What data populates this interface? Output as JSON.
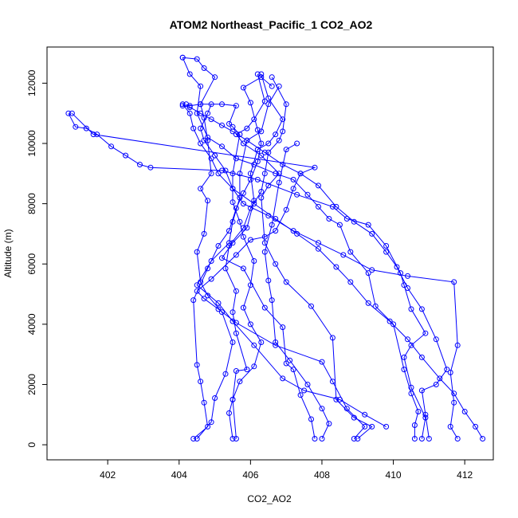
{
  "chart_data": {
    "type": "line",
    "title": "ATOM2 Northeast_Pacific_1 CO2_AO2",
    "xlabel": "CO2_AO2",
    "ylabel": "Altitude (m)",
    "xlim": [
      400.3,
      412.8
    ],
    "ylim": [
      -500,
      13200
    ],
    "x_ticks": [
      402,
      404,
      406,
      408,
      410,
      412
    ],
    "y_ticks": [
      0,
      2000,
      4000,
      6000,
      8000,
      10000,
      12000
    ],
    "x_tick_labels": [
      "402",
      "404",
      "406",
      "408",
      "410",
      "412"
    ],
    "y_tick_labels": [
      "0",
      "2000",
      "4000",
      "6000",
      "8000",
      "10000",
      "12000"
    ],
    "grid": false,
    "legend": "none",
    "series_color": "#0000ff",
    "marker": "open-circle",
    "series": [
      {
        "points": [
          [
            404.4,
            200
          ],
          [
            404.8,
            600
          ],
          [
            404.7,
            1400
          ],
          [
            404.6,
            2100
          ],
          [
            404.5,
            2650
          ],
          [
            404.4,
            4800
          ],
          [
            404.8,
            5850
          ],
          [
            405.1,
            6600
          ],
          [
            405.4,
            7100
          ],
          [
            405.6,
            7850
          ],
          [
            405.8,
            8350
          ],
          [
            406.0,
            8800
          ],
          [
            406.2,
            9400
          ],
          [
            406.3,
            10000
          ],
          [
            406.2,
            10450
          ],
          [
            406.0,
            11350
          ],
          [
            405.8,
            11850
          ],
          [
            406.3,
            12200
          ],
          [
            406.6,
            11900
          ]
        ]
      },
      {
        "points": [
          [
            404.5,
            200
          ],
          [
            404.9,
            750
          ],
          [
            405.0,
            1550
          ],
          [
            405.3,
            2350
          ],
          [
            405.5,
            3400
          ],
          [
            405.2,
            4400
          ],
          [
            404.8,
            4950
          ],
          [
            404.6,
            5400
          ],
          [
            404.5,
            6400
          ],
          [
            404.7,
            7000
          ],
          [
            404.8,
            8100
          ],
          [
            404.6,
            8500
          ],
          [
            404.9,
            9000
          ],
          [
            404.8,
            10100
          ],
          [
            404.7,
            10850
          ],
          [
            404.6,
            11300
          ],
          [
            405.0,
            12200
          ],
          [
            404.7,
            12500
          ],
          [
            404.5,
            12800
          ],
          [
            404.1,
            12850
          ]
        ]
      },
      {
        "points": [
          [
            405.5,
            200
          ],
          [
            405.4,
            1050
          ],
          [
            405.5,
            1500
          ],
          [
            405.6,
            2450
          ],
          [
            405.9,
            2500
          ],
          [
            405.6,
            3700
          ],
          [
            405.5,
            4400
          ],
          [
            405.6,
            5100
          ],
          [
            405.3,
            5850
          ],
          [
            405.4,
            6600
          ],
          [
            405.8,
            7200
          ],
          [
            406.0,
            7850
          ],
          [
            406.3,
            8400
          ],
          [
            406.4,
            9000
          ],
          [
            406.5,
            9700
          ],
          [
            406.8,
            10100
          ],
          [
            406.9,
            10400
          ],
          [
            407.0,
            11300
          ],
          [
            406.6,
            12200
          ]
        ]
      },
      {
        "points": [
          [
            405.6,
            200
          ],
          [
            405.5,
            1500
          ],
          [
            405.7,
            2100
          ],
          [
            406.1,
            2600
          ],
          [
            406.3,
            3400
          ],
          [
            406.0,
            4000
          ],
          [
            405.8,
            4550
          ],
          [
            406.0,
            5300
          ],
          [
            406.1,
            6100
          ],
          [
            405.8,
            6900
          ],
          [
            405.7,
            7400
          ],
          [
            405.5,
            8050
          ],
          [
            405.5,
            9000
          ],
          [
            405.7,
            10300
          ],
          [
            405.5,
            10550
          ],
          [
            405.4,
            10650
          ],
          [
            405.6,
            11250
          ],
          [
            405.2,
            11300
          ],
          [
            404.6,
            11300
          ],
          [
            404.3,
            11250
          ],
          [
            404.1,
            11250
          ]
        ]
      },
      {
        "points": [
          [
            407.8,
            200
          ],
          [
            407.7,
            850
          ],
          [
            407.4,
            1650
          ],
          [
            407.2,
            2500
          ],
          [
            407.0,
            2700
          ],
          [
            406.9,
            3900
          ],
          [
            406.4,
            4550
          ],
          [
            405.8,
            5850
          ],
          [
            405.2,
            6200
          ],
          [
            405.5,
            6700
          ],
          [
            405.9,
            7200
          ],
          [
            406.1,
            8100
          ],
          [
            406.0,
            9000
          ],
          [
            406.2,
            9800
          ],
          [
            406.5,
            10000
          ],
          [
            406.7,
            10300
          ],
          [
            406.9,
            10800
          ],
          [
            406.5,
            11500
          ],
          [
            406.3,
            12300
          ]
        ]
      },
      {
        "points": [
          [
            408.0,
            200
          ],
          [
            408.2,
            700
          ],
          [
            408.0,
            1200
          ],
          [
            407.6,
            2000
          ],
          [
            407.1,
            2800
          ],
          [
            406.7,
            3400
          ],
          [
            406.6,
            4800
          ],
          [
            406.5,
            5450
          ],
          [
            406.4,
            6400
          ],
          [
            406.6,
            7300
          ],
          [
            406.8,
            8700
          ],
          [
            407.0,
            9800
          ],
          [
            407.3,
            10000
          ]
        ]
      },
      {
        "points": [
          [
            408.9,
            200
          ],
          [
            409.2,
            600
          ],
          [
            408.7,
            1200
          ],
          [
            408.3,
            2100
          ],
          [
            408.0,
            2750
          ],
          [
            406.7,
            3300
          ],
          [
            405.6,
            4050
          ],
          [
            405.1,
            4500
          ],
          [
            404.7,
            4850
          ],
          [
            404.5,
            5100
          ],
          [
            404.9,
            5500
          ],
          [
            405.6,
            6300
          ],
          [
            406.0,
            6800
          ],
          [
            406.4,
            6900
          ],
          [
            406.7,
            7100
          ],
          [
            407.0,
            7800
          ],
          [
            407.2,
            8500
          ],
          [
            407.4,
            9000
          ],
          [
            407.8,
            9200
          ],
          [
            401.6,
            10300
          ],
          [
            401.0,
            11000
          ]
        ]
      },
      {
        "points": [
          [
            409.0,
            200
          ],
          [
            409.4,
            600
          ],
          [
            408.9,
            900
          ],
          [
            408.4,
            1500
          ],
          [
            408.3,
            3550
          ],
          [
            407.7,
            4600
          ],
          [
            407.0,
            5400
          ],
          [
            406.7,
            6000
          ],
          [
            406.4,
            6700
          ],
          [
            406.3,
            8200
          ],
          [
            406.5,
            8600
          ],
          [
            406.8,
            9000
          ],
          [
            406.3,
            9600
          ],
          [
            405.8,
            10000
          ],
          [
            405.6,
            10300
          ],
          [
            405.9,
            10500
          ],
          [
            406.1,
            10800
          ],
          [
            406.4,
            11400
          ],
          [
            406.2,
            12300
          ]
        ]
      },
      {
        "points": [
          [
            409.8,
            600
          ],
          [
            409.2,
            1000
          ],
          [
            408.5,
            1500
          ],
          [
            407.5,
            1800
          ],
          [
            406.9,
            2200
          ],
          [
            406.1,
            3300
          ],
          [
            405.5,
            4100
          ],
          [
            405.1,
            4700
          ],
          [
            404.5,
            5300
          ],
          [
            404.9,
            6100
          ],
          [
            405.4,
            6700
          ],
          [
            405.5,
            7400
          ],
          [
            405.7,
            8200
          ],
          [
            405.7,
            9000
          ],
          [
            405.9,
            10100
          ],
          [
            406.3,
            10400
          ],
          [
            406.5,
            11300
          ],
          [
            406.8,
            11900
          ]
        ]
      },
      {
        "points": [
          [
            410.6,
            200
          ],
          [
            410.6,
            650
          ],
          [
            410.7,
            1100
          ],
          [
            410.5,
            1700
          ],
          [
            410.3,
            2500
          ],
          [
            410.0,
            4000
          ],
          [
            409.5,
            4600
          ],
          [
            409.3,
            5700
          ],
          [
            408.8,
            6400
          ],
          [
            408.5,
            7300
          ],
          [
            408.2,
            7500
          ],
          [
            407.9,
            7900
          ],
          [
            407.6,
            8300
          ],
          [
            407.2,
            8800
          ],
          [
            406.7,
            9000
          ],
          [
            406.1,
            9300
          ],
          [
            405.6,
            9500
          ],
          [
            405.2,
            9900
          ],
          [
            404.8,
            10200
          ],
          [
            404.5,
            11000
          ],
          [
            404.6,
            11900
          ],
          [
            404.3,
            12300
          ],
          [
            404.1,
            12850
          ]
        ]
      },
      {
        "points": [
          [
            410.8,
            200
          ],
          [
            410.9,
            900
          ],
          [
            410.5,
            1900
          ],
          [
            410.3,
            2900
          ],
          [
            410.5,
            3300
          ],
          [
            410.9,
            3700
          ],
          [
            410.5,
            4500
          ],
          [
            410.3,
            5300
          ],
          [
            410.2,
            5700
          ],
          [
            409.8,
            6600
          ],
          [
            409.3,
            7300
          ],
          [
            408.7,
            7500
          ],
          [
            408.3,
            7900
          ],
          [
            407.3,
            8300
          ],
          [
            406.2,
            8800
          ],
          [
            405.2,
            9100
          ],
          [
            403.2,
            9200
          ],
          [
            402.9,
            9300
          ],
          [
            402.5,
            9600
          ],
          [
            402.1,
            9900
          ],
          [
            401.7,
            10300
          ],
          [
            401.4,
            10500
          ],
          [
            401.1,
            10550
          ],
          [
            400.9,
            11000
          ]
        ]
      },
      {
        "points": [
          [
            411.0,
            200
          ],
          [
            410.9,
            1000
          ],
          [
            410.8,
            1800
          ],
          [
            411.2,
            2000
          ],
          [
            411.5,
            2500
          ],
          [
            411.2,
            3500
          ],
          [
            410.8,
            4500
          ],
          [
            410.4,
            5200
          ],
          [
            410.1,
            5900
          ],
          [
            409.8,
            6400
          ],
          [
            409.4,
            7000
          ],
          [
            408.9,
            7400
          ],
          [
            408.4,
            7900
          ],
          [
            407.9,
            8600
          ],
          [
            407.4,
            9000
          ],
          [
            406.9,
            9300
          ],
          [
            406.4,
            9700
          ],
          [
            405.9,
            10100
          ],
          [
            405.5,
            10400
          ],
          [
            405.2,
            10600
          ],
          [
            404.9,
            10800
          ],
          [
            404.6,
            11000
          ],
          [
            404.3,
            11200
          ],
          [
            404.2,
            11300
          ]
        ]
      },
      {
        "points": [
          [
            411.8,
            200
          ],
          [
            411.6,
            600
          ],
          [
            411.7,
            1400
          ],
          [
            411.6,
            2400
          ],
          [
            411.8,
            3300
          ],
          [
            411.7,
            5400
          ],
          [
            410.4,
            5600
          ],
          [
            409.4,
            5800
          ],
          [
            408.6,
            6300
          ],
          [
            407.9,
            6700
          ],
          [
            407.2,
            7100
          ],
          [
            406.5,
            7600
          ],
          [
            405.8,
            8000
          ],
          [
            405.5,
            8500
          ],
          [
            405.3,
            9100
          ],
          [
            405.0,
            9600
          ],
          [
            404.7,
            10100
          ],
          [
            404.6,
            10500
          ],
          [
            404.8,
            11000
          ],
          [
            404.9,
            11300
          ]
        ]
      },
      {
        "points": [
          [
            412.5,
            200
          ],
          [
            412.3,
            600
          ],
          [
            412.0,
            1100
          ],
          [
            411.7,
            1700
          ],
          [
            411.3,
            2200
          ],
          [
            410.8,
            2900
          ],
          [
            410.4,
            3500
          ],
          [
            409.9,
            4100
          ],
          [
            409.3,
            4700
          ],
          [
            408.8,
            5400
          ],
          [
            408.4,
            5900
          ],
          [
            407.9,
            6500
          ],
          [
            407.3,
            7000
          ],
          [
            406.7,
            7500
          ],
          [
            406.1,
            8000
          ],
          [
            405.5,
            8500
          ],
          [
            405.1,
            9000
          ],
          [
            404.9,
            9500
          ],
          [
            404.6,
            10000
          ],
          [
            404.4,
            10500
          ],
          [
            404.3,
            11000
          ],
          [
            404.1,
            11300
          ]
        ]
      }
    ]
  }
}
